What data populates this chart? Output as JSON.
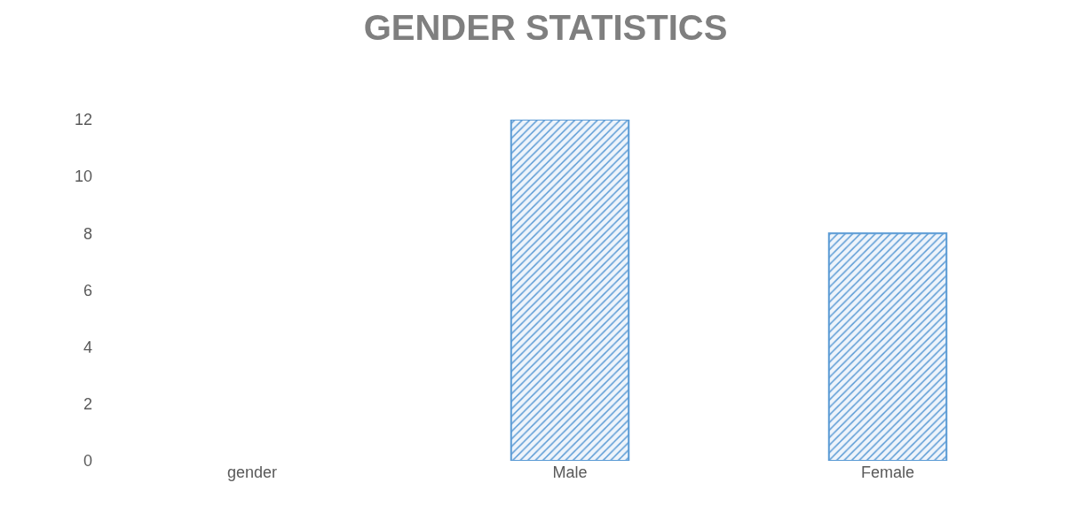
{
  "chart_data": {
    "type": "bar",
    "title": "GENDER STATISTICS",
    "categories": [
      "gender",
      "Male",
      "Female"
    ],
    "values": [
      null,
      12,
      8
    ],
    "color": "#5b9bd5",
    "ylim": [
      0,
      12
    ],
    "yticks": [
      0,
      2,
      4,
      6,
      8,
      10,
      12
    ],
    "grid": false
  }
}
